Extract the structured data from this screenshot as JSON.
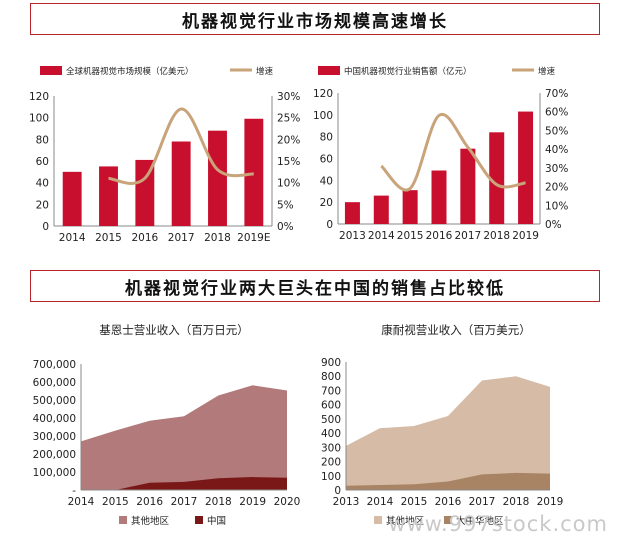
{
  "banner1": "机器视觉行业市场规模高速增长",
  "banner2": "机器视觉行业两大巨头在中国的销售占比较低",
  "watermark": "www.997stock.com",
  "colors": {
    "bar": "#c8102e",
    "growth_line": "#c9a37a",
    "banner_border": "#b8242a",
    "area_other_1": "#b27a7a",
    "area_china": "#7a1818",
    "area_other_2": "#d6bca6",
    "area_greater_china": "#a88464"
  },
  "chart_data": [
    {
      "id": "c1",
      "type": "bar+line",
      "legend": [
        "全球机器视觉市场规模（亿美元）",
        "增速"
      ],
      "categories": [
        "2014",
        "2015",
        "2016",
        "2017",
        "2018",
        "2019E"
      ],
      "bar_values": [
        50,
        55,
        61,
        78,
        88,
        99
      ],
      "line_values": [
        null,
        0.11,
        0.11,
        0.27,
        0.13,
        0.12
      ],
      "ylim": [
        0,
        120
      ],
      "y_ticks": [
        0,
        20,
        40,
        60,
        80,
        100,
        120
      ],
      "y2lim": [
        0,
        0.3
      ],
      "y2_ticks": [
        "0%",
        "5%",
        "10%",
        "15%",
        "20%",
        "25%",
        "30%"
      ]
    },
    {
      "id": "c2",
      "type": "bar+line",
      "legend": [
        "中国机器视觉行业销售额（亿元）",
        "增速"
      ],
      "categories": [
        "2013",
        "2014",
        "2015",
        "2016",
        "2017",
        "2018",
        "2019"
      ],
      "bar_values": [
        20,
        26,
        31,
        49,
        69,
        84,
        103
      ],
      "line_values": [
        null,
        0.31,
        0.19,
        0.58,
        0.41,
        0.21,
        0.22
      ],
      "ylim": [
        0,
        120
      ],
      "y_ticks": [
        0,
        20,
        40,
        60,
        80,
        100,
        120
      ],
      "y2lim": [
        0,
        0.7
      ],
      "y2_ticks": [
        "0%",
        "10%",
        "20%",
        "30%",
        "40%",
        "50%",
        "60%",
        "70%"
      ]
    },
    {
      "id": "c3",
      "type": "area",
      "title": "基恩士营业收入（百万日元）",
      "categories": [
        "2014",
        "2015",
        "2016",
        "2017",
        "2018",
        "2019",
        "2020"
      ],
      "series": [
        {
          "name": "其他地区",
          "values": [
            270000,
            330000,
            345000,
            365000,
            460000,
            510000,
            485000
          ]
        },
        {
          "name": "中国",
          "values": [
            0,
            0,
            40000,
            45000,
            65000,
            72000,
            68000
          ]
        }
      ],
      "ylim": [
        0,
        700000
      ],
      "y_ticks": [
        "-",
        "100,000",
        "200,000",
        "300,000",
        "400,000",
        "500,000",
        "600,000",
        "700,000"
      ]
    },
    {
      "id": "c4",
      "type": "area",
      "title": "康耐视营业收入（百万美元）",
      "categories": [
        "2013",
        "2014",
        "2015",
        "2016",
        "2017",
        "2018",
        "2019"
      ],
      "series": [
        {
          "name": "其他地区",
          "values": [
            280,
            400,
            410,
            460,
            660,
            680,
            610
          ]
        },
        {
          "name": "大中华地区",
          "values": [
            30,
            35,
            40,
            60,
            110,
            120,
            115
          ]
        }
      ],
      "ylim": [
        0,
        900
      ],
      "y_ticks": [
        "0",
        "100",
        "200",
        "300",
        "400",
        "500",
        "600",
        "700",
        "800",
        "900"
      ]
    }
  ]
}
